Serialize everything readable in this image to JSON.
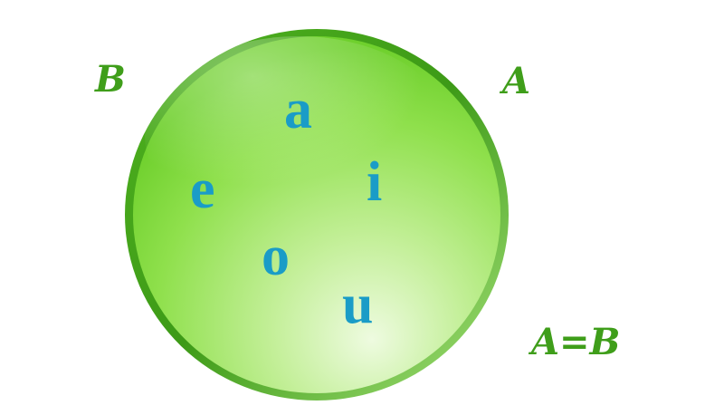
{
  "labels": {
    "set_b": "B",
    "set_a": "A",
    "equality": "A=B"
  },
  "vowels": [
    "a",
    "e",
    "i",
    "o",
    "u"
  ],
  "colors": {
    "label_green": "#3f9e1a",
    "vowel_blue": "#1a9cc7",
    "circle_light": "#d6f5b9",
    "circle_mid": "#8fe04c",
    "circle_dark": "#48b51a",
    "rim": "#3d9a17"
  }
}
